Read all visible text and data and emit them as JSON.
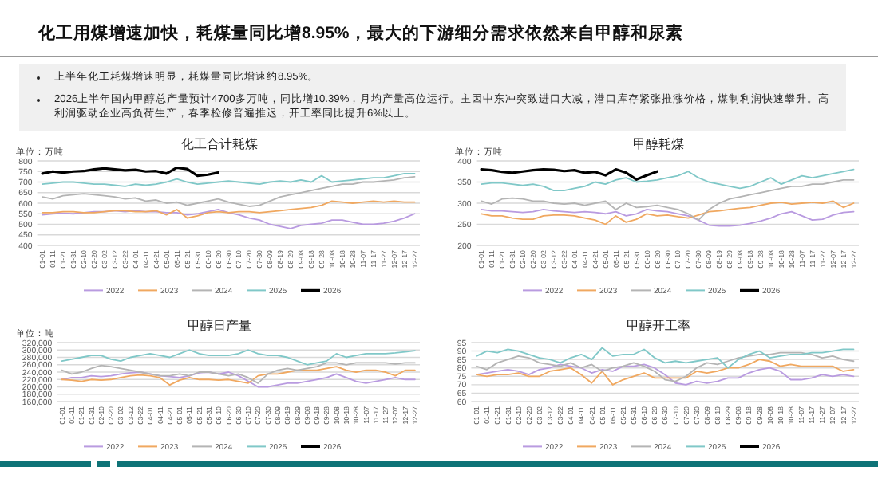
{
  "chart_data": [
    {
      "type": "other",
      "title": "化工用煤增速加快，耗煤量同比增8.95%，最大的下游细分需求依然来自甲醇和尿素",
      "annotations": [
        "上半年化工耗煤增速明显，耗煤量同比增速约8.95%。",
        "2026上半年国内甲醇总产量预计4700多万吨，同比增10.39%，月均产量高位运行。主因中东冲突致进口大减，港口库存紧张推涨价格，煤制利润快速攀升。高利润驱动企业高负荷生产，春季检修普遍推迟，开工率同比提升6%以上。"
      ]
    },
    {
      "type": "line",
      "title": "化工合计耗煤",
      "ylabel": "单位：万吨",
      "grid": "y",
      "legend": "bottom",
      "ylim": [
        400,
        800
      ],
      "yticks": [
        400,
        450,
        500,
        550,
        600,
        650,
        700,
        750,
        800
      ],
      "categories": [
        "01-01",
        "01-11",
        "01-21",
        "01-31",
        "02-10",
        "02-20",
        "03-02",
        "03-12",
        "03-22",
        "04-01",
        "04-11",
        "04-21",
        "05-01",
        "05-11",
        "05-21",
        "05-31",
        "06-10",
        "06-20",
        "06-30",
        "07-10",
        "07-20",
        "07-30",
        "08-09",
        "08-19",
        "08-29",
        "09-08",
        "09-18",
        "09-28",
        "10-08",
        "10-18",
        "10-28",
        "11-07",
        "11-17",
        "11-27",
        "12-07",
        "12-17",
        "12-27"
      ],
      "series": [
        {
          "name": "2022",
          "color": "#b99be0",
          "values": [
            545,
            550,
            552,
            550,
            555,
            560,
            560,
            565,
            560,
            565,
            560,
            560,
            555,
            555,
            545,
            550,
            560,
            570,
            555,
            545,
            530,
            520,
            500,
            490,
            480,
            495,
            500,
            505,
            520,
            520,
            510,
            500,
            500,
            505,
            515,
            530,
            550
          ]
        },
        {
          "name": "2023",
          "color": "#f0a860",
          "values": [
            555,
            555,
            560,
            560,
            555,
            555,
            560,
            565,
            565,
            560,
            560,
            565,
            545,
            570,
            530,
            540,
            555,
            560,
            555,
            560,
            560,
            555,
            560,
            565,
            570,
            575,
            580,
            590,
            610,
            605,
            600,
            605,
            610,
            605,
            610,
            605,
            605
          ]
        },
        {
          "name": "2024",
          "color": "#b4b4b4",
          "values": [
            630,
            620,
            635,
            640,
            645,
            640,
            635,
            630,
            620,
            625,
            610,
            615,
            600,
            605,
            590,
            600,
            610,
            620,
            605,
            595,
            585,
            590,
            610,
            630,
            640,
            650,
            660,
            670,
            680,
            690,
            690,
            700,
            700,
            705,
            710,
            720,
            725
          ]
        },
        {
          "name": "2025",
          "color": "#80c8c8",
          "values": [
            690,
            695,
            700,
            700,
            695,
            690,
            690,
            685,
            680,
            690,
            685,
            690,
            700,
            715,
            700,
            690,
            695,
            700,
            705,
            700,
            695,
            690,
            700,
            705,
            700,
            710,
            700,
            730,
            700,
            705,
            710,
            715,
            720,
            720,
            730,
            740,
            740
          ]
        },
        {
          "name": "2026",
          "color": "#000000",
          "values": [
            740,
            750,
            745,
            750,
            752,
            760,
            765,
            760,
            755,
            758,
            750,
            752,
            740,
            768,
            762,
            730,
            735,
            745,
            null,
            null,
            null,
            null,
            null,
            null,
            null,
            null,
            null,
            null,
            null,
            null,
            null,
            null,
            null,
            null,
            null,
            null,
            null
          ]
        }
      ]
    },
    {
      "type": "line",
      "title": "甲醇耗煤",
      "ylabel": "单位：万吨",
      "grid": "y",
      "legend": "bottom",
      "ylim": [
        200,
        400
      ],
      "yticks": [
        200,
        250,
        300,
        350,
        400
      ],
      "categories": [
        "01-01",
        "01-11",
        "01-21",
        "01-31",
        "02-10",
        "02-20",
        "03-02",
        "03-12",
        "03-22",
        "04-01",
        "04-11",
        "04-21",
        "05-01",
        "05-11",
        "05-21",
        "05-31",
        "06-10",
        "06-20",
        "06-30",
        "07-10",
        "07-20",
        "07-30",
        "08-09",
        "08-19",
        "08-29",
        "09-08",
        "09-18",
        "09-28",
        "10-08",
        "10-18",
        "10-28",
        "11-07",
        "11-17",
        "11-27",
        "12-07",
        "12-17",
        "12-27"
      ],
      "series": [
        {
          "name": "2022",
          "color": "#b99be0",
          "values": [
            285,
            282,
            282,
            280,
            278,
            280,
            285,
            282,
            280,
            278,
            280,
            278,
            275,
            280,
            270,
            275,
            285,
            282,
            280,
            275,
            270,
            260,
            248,
            246,
            246,
            248,
            252,
            258,
            265,
            275,
            280,
            270,
            260,
            262,
            272,
            278,
            280
          ]
        },
        {
          "name": "2023",
          "color": "#f0a860",
          "values": [
            275,
            270,
            270,
            265,
            262,
            262,
            270,
            272,
            272,
            270,
            265,
            260,
            250,
            270,
            255,
            262,
            275,
            270,
            272,
            268,
            265,
            272,
            280,
            282,
            285,
            288,
            290,
            295,
            300,
            302,
            298,
            300,
            302,
            300,
            305,
            290,
            300
          ]
        },
        {
          "name": "2024",
          "color": "#b4b4b4",
          "values": [
            305,
            298,
            310,
            312,
            310,
            305,
            305,
            300,
            298,
            300,
            295,
            300,
            305,
            285,
            300,
            290,
            292,
            295,
            290,
            285,
            275,
            260,
            285,
            300,
            310,
            315,
            320,
            325,
            330,
            335,
            340,
            340,
            345,
            345,
            350,
            355,
            355
          ]
        },
        {
          "name": "2025",
          "color": "#80c8c8",
          "values": [
            345,
            348,
            348,
            345,
            342,
            345,
            340,
            330,
            330,
            335,
            340,
            350,
            345,
            355,
            360,
            350,
            352,
            355,
            360,
            365,
            375,
            360,
            350,
            345,
            340,
            335,
            340,
            350,
            360,
            345,
            355,
            365,
            360,
            365,
            370,
            375,
            380
          ]
        },
        {
          "name": "2026",
          "color": "#000000",
          "values": [
            380,
            378,
            374,
            372,
            375,
            378,
            380,
            379,
            376,
            378,
            372,
            374,
            366,
            380,
            372,
            356,
            366,
            375,
            null,
            null,
            null,
            null,
            null,
            null,
            null,
            null,
            null,
            null,
            null,
            null,
            null,
            null,
            null,
            null,
            null,
            null,
            null
          ]
        }
      ]
    },
    {
      "type": "line",
      "title": "甲醇日产量",
      "ylabel": "单位：吨",
      "grid": "y",
      "legend": "bottom",
      "ylim": [
        160000,
        320000
      ],
      "yticks": [
        {
          "value": 160000,
          "label": "160,000"
        },
        {
          "value": 180000,
          "label": "180,000"
        },
        {
          "value": 200000,
          "label": "200,000"
        },
        {
          "value": 220000,
          "label": "220,000"
        },
        {
          "value": 240000,
          "label": "240,000"
        },
        {
          "value": 260000,
          "label": "260,000"
        },
        {
          "value": 280000,
          "label": "280,000"
        },
        {
          "value": 300000,
          "label": "300,000"
        },
        {
          "value": 320000,
          "label": "320,000"
        }
      ],
      "categories": [
        "01-01",
        "01-11",
        "01-21",
        "01-31",
        "02-10",
        "02-20",
        "03-02",
        "03-12",
        "03-22",
        "04-01",
        "04-11",
        "04-21",
        "05-01",
        "05-11",
        "05-21",
        "05-31",
        "06-10",
        "06-20",
        "06-30",
        "07-10",
        "07-20",
        "07-30",
        "08-09",
        "08-19",
        "08-29",
        "09-08",
        "09-18",
        "09-28",
        "10-08",
        "10-18",
        "10-28",
        "11-07",
        "11-17",
        "11-27",
        "12-07",
        "12-17",
        "12-27"
      ],
      "series": [
        {
          "name": "2022",
          "color": "#b99be0",
          "values": [
            220000,
            225000,
            225000,
            230000,
            228000,
            230000,
            235000,
            238000,
            240000,
            235000,
            230000,
            228000,
            225000,
            230000,
            238000,
            240000,
            235000,
            240000,
            230000,
            215000,
            200000,
            200000,
            205000,
            210000,
            210000,
            215000,
            220000,
            225000,
            235000,
            225000,
            215000,
            210000,
            215000,
            220000,
            225000,
            220000,
            220000
          ]
        },
        {
          "name": "2023",
          "color": "#f0a860",
          "values": [
            220000,
            218000,
            215000,
            220000,
            218000,
            220000,
            225000,
            230000,
            232000,
            230000,
            225000,
            205000,
            218000,
            225000,
            220000,
            220000,
            218000,
            220000,
            215000,
            210000,
            230000,
            235000,
            235000,
            240000,
            245000,
            245000,
            245000,
            250000,
            255000,
            245000,
            240000,
            245000,
            245000,
            240000,
            230000,
            245000,
            245000
          ]
        },
        {
          "name": "2024",
          "color": "#b4b4b4",
          "values": [
            245000,
            235000,
            240000,
            250000,
            258000,
            255000,
            250000,
            245000,
            240000,
            235000,
            230000,
            230000,
            235000,
            230000,
            240000,
            240000,
            235000,
            230000,
            235000,
            225000,
            210000,
            235000,
            245000,
            250000,
            245000,
            250000,
            255000,
            265000,
            265000,
            260000,
            265000,
            265000,
            265000,
            265000,
            262000,
            265000,
            265000
          ]
        },
        {
          "name": "2025",
          "color": "#80c8c8",
          "values": [
            270000,
            275000,
            280000,
            285000,
            285000,
            275000,
            270000,
            280000,
            285000,
            290000,
            285000,
            280000,
            290000,
            300000,
            290000,
            285000,
            285000,
            285000,
            290000,
            300000,
            290000,
            285000,
            285000,
            280000,
            270000,
            260000,
            265000,
            270000,
            290000,
            280000,
            285000,
            290000,
            290000,
            290000,
            292000,
            295000,
            298000
          ]
        },
        {
          "name": "2026",
          "color": "#000000",
          "values": [
            null,
            null,
            null,
            null,
            null,
            null,
            null,
            null,
            null,
            null,
            null,
            null,
            null,
            null,
            null,
            null,
            null,
            null,
            null,
            null,
            null,
            null,
            null,
            null,
            null,
            null,
            null,
            null,
            null,
            null,
            null,
            null,
            null,
            null,
            null,
            null,
            null
          ]
        }
      ]
    },
    {
      "type": "line",
      "title": "甲醇开工率",
      "grid": "y",
      "legend": "bottom",
      "ylim": [
        60,
        95
      ],
      "yticks": [
        60,
        65,
        70,
        75,
        80,
        85,
        90,
        95
      ],
      "categories": [
        "01-01",
        "01-11",
        "01-21",
        "01-31",
        "02-10",
        "02-20",
        "03-02",
        "03-12",
        "03-22",
        "04-01",
        "04-11",
        "04-21",
        "05-01",
        "05-11",
        "05-21",
        "05-31",
        "06-10",
        "06-20",
        "06-30",
        "07-10",
        "07-20",
        "07-30",
        "08-09",
        "08-19",
        "08-29",
        "09-08",
        "09-18",
        "09-28",
        "10-08",
        "10-18",
        "10-28",
        "11-07",
        "11-17",
        "11-27",
        "12-07",
        "12-17",
        "12-27"
      ],
      "series": [
        {
          "name": "2022",
          "color": "#b99be0",
          "values": [
            76,
            77,
            78,
            79,
            78,
            76,
            79,
            80,
            82,
            81,
            80,
            77,
            79,
            78,
            81,
            81,
            82,
            80,
            76,
            71,
            70,
            72,
            71,
            72,
            74,
            74,
            77,
            79,
            80,
            78,
            73,
            73,
            74,
            76,
            75,
            76,
            75
          ]
        },
        {
          "name": "2023",
          "color": "#f0a860",
          "values": [
            76,
            75,
            76,
            76,
            77,
            75,
            75,
            78,
            79,
            80,
            76,
            71,
            78,
            70,
            73,
            75,
            77,
            74,
            74,
            74,
            74,
            78,
            77,
            78,
            80,
            80,
            82,
            85,
            84,
            81,
            82,
            81,
            81,
            81,
            81,
            78,
            79
          ]
        },
        {
          "name": "2024",
          "color": "#b4b4b4",
          "values": [
            81,
            79,
            83,
            85,
            87,
            86,
            83,
            82,
            81,
            83,
            80,
            82,
            78,
            80,
            81,
            83,
            81,
            78,
            73,
            72,
            75,
            80,
            83,
            82,
            84,
            86,
            87,
            88,
            88,
            89,
            89,
            89,
            88,
            86,
            87,
            85,
            84
          ]
        },
        {
          "name": "2025",
          "color": "#80c8c8",
          "values": [
            87,
            90,
            89,
            91,
            90,
            88,
            86,
            85,
            83,
            86,
            88,
            85,
            92,
            87,
            88,
            88,
            91,
            86,
            83,
            84,
            83,
            84,
            85,
            86,
            80,
            85,
            88,
            90,
            86,
            87,
            88,
            88,
            89,
            89,
            90,
            91,
            91
          ]
        },
        {
          "name": "2026",
          "color": "#000000",
          "values": [
            null,
            null,
            null,
            null,
            null,
            null,
            null,
            null,
            null,
            null,
            null,
            null,
            null,
            null,
            null,
            null,
            null,
            null,
            null,
            null,
            null,
            null,
            null,
            null,
            null,
            null,
            null,
            null,
            null,
            null,
            null,
            null,
            null,
            null,
            null,
            null,
            null
          ]
        }
      ]
    }
  ]
}
